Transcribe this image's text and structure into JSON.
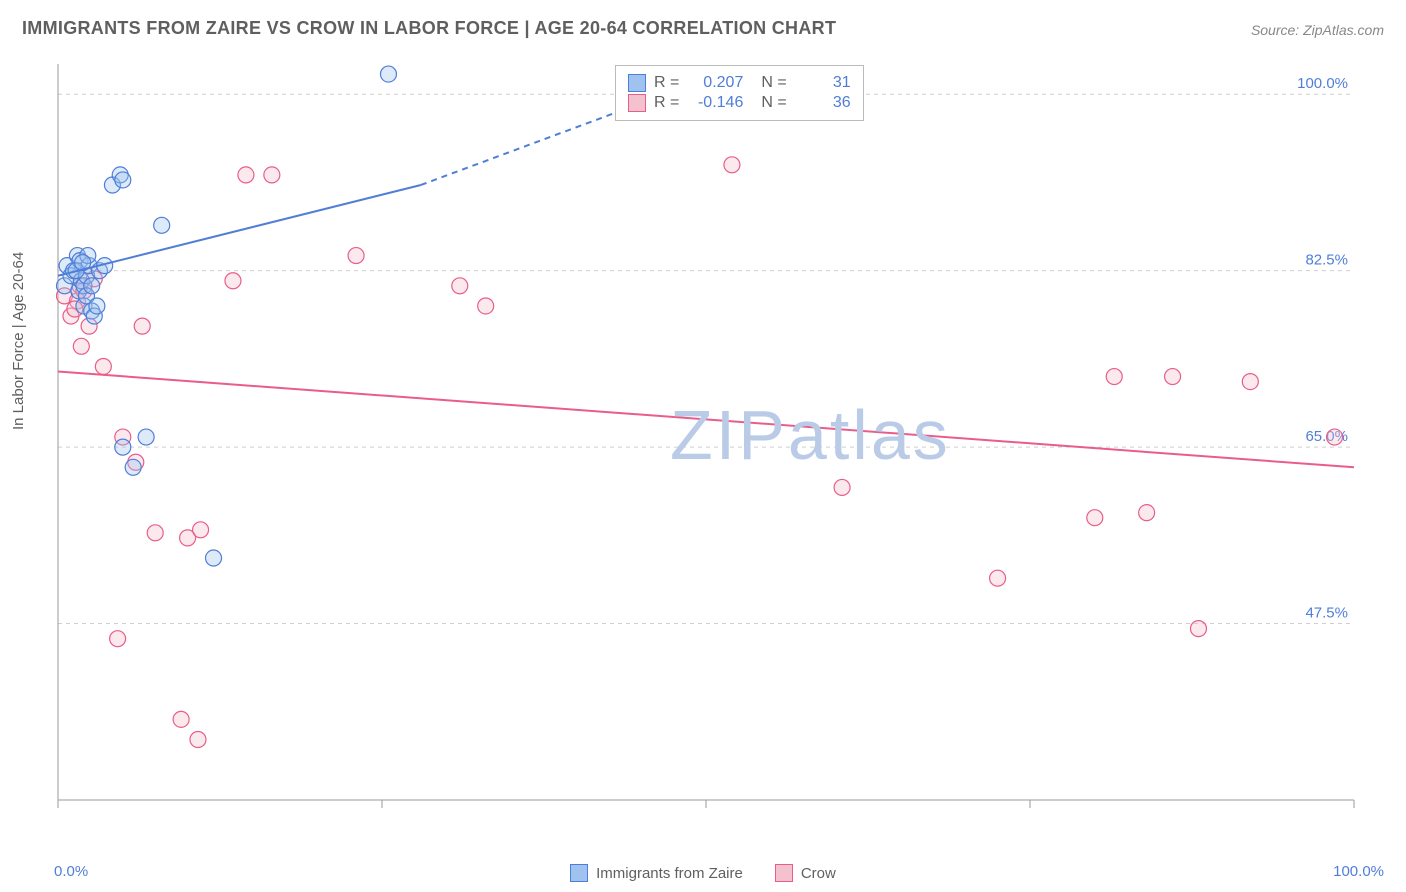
{
  "title": "IMMIGRANTS FROM ZAIRE VS CROW IN LABOR FORCE | AGE 20-64 CORRELATION CHART",
  "source_prefix": "Source: ",
  "source_name": "ZipAtlas.com",
  "ylabel": "In Labor Force | Age 20-64",
  "watermark": "ZIPatlas",
  "watermark_color": "#b9cbe7",
  "chart": {
    "type": "scatter",
    "background": "#ffffff",
    "grid_color": "#cfcfcf",
    "axis_color": "#9a9a9a",
    "tick_label_color": "#4f7ed8",
    "x_range": [
      0,
      100
    ],
    "y_range": [
      30,
      103
    ],
    "y_ticks": [
      47.5,
      65.0,
      82.5,
      100.0
    ],
    "y_tick_labels": [
      "47.5%",
      "65.0%",
      "82.5%",
      "100.0%"
    ],
    "x_origin_label": "0.0%",
    "x_max_label": "100.0%",
    "series": {
      "a": {
        "name": "Immigrants from Zaire",
        "fill": "#9fc3ee",
        "stroke": "#4f7ed8",
        "marker_radius": 8,
        "points": [
          [
            0.5,
            81
          ],
          [
            0.7,
            83
          ],
          [
            1.0,
            82
          ],
          [
            1.2,
            82.5
          ],
          [
            1.5,
            84
          ],
          [
            1.6,
            80.5
          ],
          [
            1.7,
            83.5
          ],
          [
            1.8,
            81.5
          ],
          [
            2.0,
            81
          ],
          [
            2.0,
            79
          ],
          [
            2.2,
            82
          ],
          [
            2.2,
            80
          ],
          [
            2.4,
            83
          ],
          [
            2.6,
            81
          ],
          [
            2.6,
            78.5
          ],
          [
            2.8,
            78
          ],
          [
            3.0,
            79
          ],
          [
            3.2,
            82.5
          ],
          [
            3.6,
            83
          ],
          [
            4.2,
            91
          ],
          [
            4.8,
            92
          ],
          [
            5.0,
            91.5
          ],
          [
            5.0,
            65
          ],
          [
            5.8,
            63
          ],
          [
            6.8,
            66
          ],
          [
            8.0,
            87
          ],
          [
            12.0,
            54
          ],
          [
            25.5,
            102
          ],
          [
            2.3,
            84
          ],
          [
            1.4,
            82.5
          ],
          [
            1.9,
            83.3
          ]
        ],
        "trend_solid": [
          [
            0,
            82
          ],
          [
            28,
            91
          ]
        ],
        "trend_dashed": [
          [
            28,
            91
          ],
          [
            50,
            101.5
          ]
        ]
      },
      "b": {
        "name": "Crow",
        "fill": "#f4c1cf",
        "stroke": "#e85d8a",
        "marker_radius": 8,
        "points": [
          [
            0.5,
            80
          ],
          [
            1.0,
            78
          ],
          [
            1.5,
            79.5
          ],
          [
            1.7,
            81
          ],
          [
            1.8,
            75
          ],
          [
            2.0,
            80.5
          ],
          [
            2.4,
            77
          ],
          [
            3.5,
            73
          ],
          [
            4.6,
            46
          ],
          [
            5.0,
            66
          ],
          [
            6.0,
            63.5
          ],
          [
            6.5,
            77
          ],
          [
            7.5,
            56.5
          ],
          [
            10.0,
            56
          ],
          [
            9.5,
            38
          ],
          [
            10.8,
            36
          ],
          [
            11.0,
            56.8
          ],
          [
            13.5,
            81.5
          ],
          [
            14.5,
            92
          ],
          [
            16.5,
            92
          ],
          [
            23.0,
            84
          ],
          [
            31.0,
            81
          ],
          [
            33.0,
            79
          ],
          [
            50.0,
            102
          ],
          [
            52.0,
            93
          ],
          [
            60.5,
            61
          ],
          [
            72.5,
            52
          ],
          [
            80.0,
            58
          ],
          [
            81.5,
            72
          ],
          [
            84.0,
            58.5
          ],
          [
            86.0,
            72
          ],
          [
            88.0,
            47
          ],
          [
            92.0,
            71.5
          ],
          [
            98.5,
            66
          ],
          [
            2.8,
            81.7
          ],
          [
            1.3,
            78.7
          ]
        ],
        "trend_solid": [
          [
            0,
            72.5
          ],
          [
            100,
            63
          ]
        ]
      }
    }
  },
  "stats_legend": {
    "r_label": "R =",
    "n_label": "N =",
    "rows": [
      {
        "series": "a",
        "r": "0.207",
        "n": "31"
      },
      {
        "series": "b",
        "r": "-0.146",
        "n": "36"
      }
    ]
  }
}
